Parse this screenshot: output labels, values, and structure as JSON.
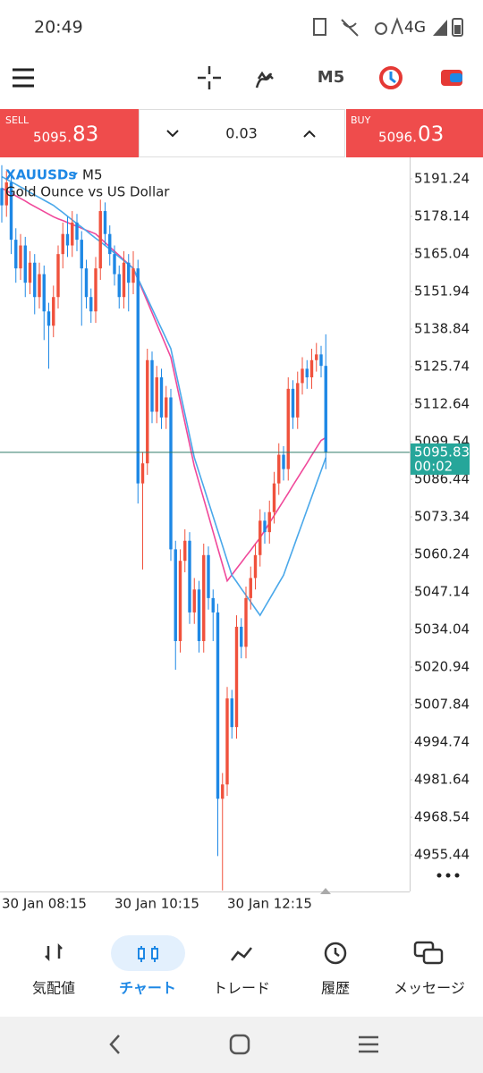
{
  "status_bar": {
    "time": "20:49",
    "network": "4G"
  },
  "toolbar": {
    "timeframe": "M5"
  },
  "trade_panel": {
    "sell": {
      "label": "SELL",
      "price_main": "5095.",
      "price_big": "83"
    },
    "volume": "0.03",
    "buy": {
      "label": "BUY",
      "price_main": "5096.",
      "price_big": "03"
    }
  },
  "chart_data": {
    "type": "candlestick",
    "symbol": "XAUUSDs",
    "timeframe": "M5",
    "description": "Gold Ounce vs US Dollar",
    "categories": [
      "30 Jan 08:15",
      null,
      null,
      null,
      null,
      null,
      null,
      null,
      null,
      null,
      null,
      null,
      null,
      null,
      null,
      null,
      null,
      null,
      null,
      null,
      null,
      null,
      null,
      null,
      "30 Jan 10:15",
      null,
      null,
      null,
      null,
      null,
      null,
      null,
      null,
      null,
      null,
      null,
      null,
      null,
      null,
      null,
      null,
      null,
      null,
      null,
      null,
      null,
      null,
      null,
      "30 Jan 12:15",
      null,
      null,
      null,
      null,
      null,
      null,
      null,
      null,
      null,
      null,
      null,
      null,
      null,
      null,
      null,
      null,
      null,
      null,
      null,
      null,
      null
    ],
    "open": [
      5188,
      5182,
      5190,
      5170,
      5160,
      5168,
      5155,
      5162,
      5150,
      5158,
      5145,
      5140,
      5150,
      5165,
      5172,
      5168,
      5176,
      5170,
      5160,
      5150,
      5145,
      5160,
      5180,
      5172,
      5165,
      5158,
      5150,
      5162,
      5155,
      5160,
      5085,
      5092,
      5128,
      5110,
      5122,
      5108,
      5115,
      5062,
      5030,
      5058,
      5065,
      5040,
      5048,
      5030,
      5060,
      5045,
      5040,
      4975,
      4980,
      5010,
      5000,
      5035,
      5028,
      5045,
      5052,
      5060,
      5072,
      5068,
      5075,
      5085,
      5095,
      5090,
      5118,
      5108,
      5120,
      5125,
      5122,
      5128,
      5130,
      5126
    ],
    "high": [
      5196,
      5194,
      5193,
      5174,
      5172,
      5171,
      5166,
      5165,
      5162,
      5161,
      5148,
      5154,
      5168,
      5176,
      5178,
      5180,
      5179,
      5173,
      5163,
      5153,
      5164,
      5184,
      5183,
      5175,
      5168,
      5161,
      5166,
      5165,
      5166,
      5163,
      5096,
      5132,
      5131,
      5126,
      5125,
      5119,
      5118,
      5065,
      5062,
      5069,
      5068,
      5052,
      5051,
      5064,
      5063,
      5048,
      5043,
      4984,
      5014,
      5013,
      5039,
      5038,
      5049,
      5056,
      5064,
      5076,
      5075,
      5079,
      5089,
      5099,
      5098,
      5122,
      5121,
      5124,
      5129,
      5128,
      5132,
      5134,
      5133,
      5137
    ],
    "low": [
      5176,
      5178,
      5165,
      5155,
      5156,
      5150,
      5151,
      5144,
      5146,
      5135,
      5125,
      5136,
      5146,
      5160,
      5164,
      5164,
      5166,
      5140,
      5146,
      5141,
      5141,
      5156,
      5168,
      5161,
      5154,
      5146,
      5146,
      5145,
      5151,
      5078,
      5055,
      5088,
      5106,
      5106,
      5104,
      5104,
      5058,
      5020,
      5026,
      5054,
      5036,
      5036,
      5026,
      5026,
      5041,
      5030,
      4955,
      4943,
      4976,
      4996,
      4996,
      5024,
      5024,
      5041,
      5048,
      5056,
      5064,
      5064,
      5071,
      5081,
      5086,
      5086,
      5104,
      5104,
      5116,
      5118,
      5118,
      5124,
      5122,
      5090
    ],
    "close": [
      5182,
      5190,
      5170,
      5160,
      5168,
      5155,
      5162,
      5150,
      5158,
      5145,
      5140,
      5150,
      5165,
      5172,
      5168,
      5176,
      5170,
      5160,
      5150,
      5145,
      5160,
      5180,
      5172,
      5165,
      5158,
      5150,
      5162,
      5155,
      5160,
      5085,
      5092,
      5128,
      5110,
      5122,
      5108,
      5115,
      5062,
      5030,
      5058,
      5065,
      5040,
      5048,
      5030,
      5060,
      5045,
      5040,
      4975,
      4980,
      5010,
      5000,
      5035,
      5028,
      5045,
      5052,
      5060,
      5072,
      5068,
      5075,
      5085,
      5095,
      5090,
      5118,
      5108,
      5120,
      5125,
      5122,
      5128,
      5130,
      5126,
      5095.83
    ],
    "up_color": "#f0513c",
    "down_color": "#1e88e5",
    "series": [
      {
        "color": "#f0489a",
        "values": [
          5188,
          5187.1,
          5186.2,
          5185.3,
          5184.4,
          5183.5,
          5182.5,
          5181.6,
          5180.7,
          5179.8,
          5178.9,
          5178,
          5177.3,
          5176.7,
          5176,
          5175.3,
          5174.7,
          5174,
          5173.3,
          5172.7,
          5172,
          5170.5,
          5169,
          5167.5,
          5166,
          5164.5,
          5163,
          5161.5,
          5160,
          5156.1,
          5152.3,
          5148.4,
          5144.5,
          5140.6,
          5136.8,
          5132.9,
          5129,
          5121.4,
          5113.8,
          5106.2,
          5098.6,
          5091,
          5085.3,
          5079.6,
          5073.9,
          5068.1,
          5062.4,
          5056.7,
          5051,
          5053.1,
          5055.3,
          5057.4,
          5059.6,
          5061.7,
          5063.9,
          5066,
          5068.6,
          5071.2,
          5073.8,
          5076.4,
          5079,
          5081.6,
          5084.3,
          5086.9,
          5089.5,
          5092.1,
          5094.8,
          5097.4,
          5100,
          5101
        ]
      },
      {
        "color": "#4aa8ea",
        "values": [
          5192,
          5191.1,
          5190.2,
          5189.3,
          5188.4,
          5187.5,
          5186.5,
          5185.6,
          5184.7,
          5183.8,
          5182.9,
          5182,
          5180.7,
          5179.5,
          5178.2,
          5176.9,
          5175.6,
          5174.4,
          5173.1,
          5171.8,
          5170.5,
          5169.3,
          5168,
          5166.7,
          5165.3,
          5164,
          5162.7,
          5161.3,
          5160,
          5156.5,
          5153,
          5149.5,
          5146,
          5142.5,
          5139,
          5135.5,
          5132,
          5124.4,
          5116.8,
          5109.2,
          5101.6,
          5094,
          5088.9,
          5083.8,
          5078.6,
          5073.5,
          5068.4,
          5063.3,
          5058.1,
          5053,
          5050.7,
          5048.3,
          5046,
          5043.7,
          5041.3,
          5039,
          5041.8,
          5044.6,
          5047.4,
          5050.2,
          5053,
          5057.6,
          5062.1,
          5066.7,
          5071.2,
          5075.8,
          5080.3,
          5084.9,
          5089.4,
          5094
        ]
      }
    ],
    "ylim": [
      4942.66,
      5199.04
    ],
    "yticks": [
      5191.24,
      5178.14,
      5165.04,
      5151.94,
      5138.84,
      5125.74,
      5112.64,
      5099.54,
      5086.44,
      5073.34,
      5060.24,
      5047.14,
      5034.04,
      5020.94,
      5007.84,
      4994.74,
      4981.64,
      4968.54,
      4955.44
    ],
    "current_price": 5095.83,
    "countdown": "00:02",
    "current_price_color": "#26a69a"
  },
  "nav": {
    "items": [
      "気配値",
      "チャート",
      "トレード",
      "履歴",
      "メッセージ"
    ],
    "active": 1
  }
}
